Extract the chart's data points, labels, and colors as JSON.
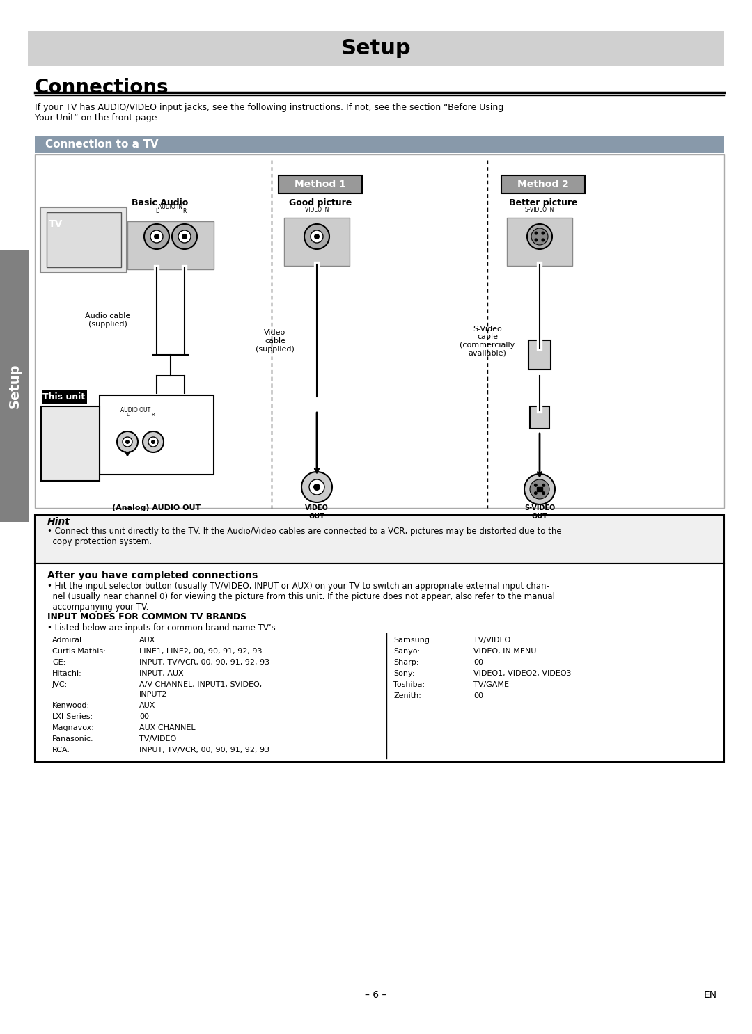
{
  "page_bg": "#ffffff",
  "title_bar_color": "#d0d0d0",
  "title_text": "Setup",
  "title_fontsize": 22,
  "connections_text": "Connections",
  "connections_fontsize": 20,
  "intro_text": "If your TV has AUDIO/VIDEO input jacks, see the following instructions. If not, see the section “Before Using\nYour Unit” on the front page.",
  "section_bar_color": "#8899aa",
  "section_text": "Connection to a TV",
  "section_fontsize": 11,
  "method1_box_color": "#888888",
  "method1_text": "Method 1",
  "method2_box_color": "#888888",
  "method2_text": "Method 2",
  "basic_audio_label": "Basic Audio",
  "good_picture_label": "Good picture",
  "better_picture_label": "Better picture",
  "tv_label": "TV",
  "this_unit_label": "This unit",
  "audio_cable_label": "Audio cable\n(supplied)",
  "video_cable_label": "Video\ncable\n(supplied)",
  "svideo_cable_label": "S-Video\ncable\n(commercially\navailable)",
  "analog_audio_out_label": "(Analog) AUDIO OUT",
  "video_out_label": "VIDEO OUT",
  "svideo_out_label": "S-VIDEO OUT",
  "hint_title": "Hint",
  "hint_text": "• Connect this unit directly to the TV. If the Audio/Video cables are connected to a VCR, pictures may be distorted due to the\n  copy protection system.",
  "after_title": "After you have completed connections",
  "after_text": "• Hit the input selector button (usually TV/VIDEO, INPUT or AUX) on your TV to switch an appropriate external input chan-\n  nel (usually near channel 0) for viewing the picture from this unit. If the picture does not appear, also refer to the manual\n  accompanying your TV.",
  "input_modes_title": "INPUT MODES FOR COMMON TV BRANDS",
  "input_modes_subtitle": "• Listed below are inputs for common brand name TV’s.",
  "left_brands": [
    [
      "Admiral:",
      "AUX"
    ],
    [
      "Curtis Mathis:",
      "LINE1, LINE2, 00, 90, 91, 92, 93"
    ],
    [
      "GE:",
      "INPUT, TV/VCR, 00, 90, 91, 92, 93"
    ],
    [
      "Hitachi:",
      "INPUT, AUX"
    ],
    [
      "JVC:",
      "A/V CHANNEL, INPUT1, SVIDEO,\n           INPUT2"
    ],
    [
      "Kenwood:",
      "AUX"
    ],
    [
      "LXI-Series:",
      "00"
    ],
    [
      "Magnavox:",
      "AUX CHANNEL"
    ],
    [
      "Panasonic:",
      "TV/VIDEO"
    ],
    [
      "RCA:",
      "INPUT, TV/VCR, 00, 90, 91, 92, 93"
    ]
  ],
  "right_brands": [
    [
      "Samsung:",
      "TV/VIDEO"
    ],
    [
      "Sanyo:",
      "VIDEO, IN MENU"
    ],
    [
      "Sharp:",
      "00"
    ],
    [
      "Sony:",
      "VIDEO1, VIDEO2, VIDEO3"
    ],
    [
      "Toshiba:",
      "TV/GAME"
    ],
    [
      "Zenith:",
      "00"
    ]
  ],
  "page_number": "– 6 –",
  "en_text": "EN",
  "setup_sidebar_text": "Setup",
  "sidebar_color": "#808080"
}
